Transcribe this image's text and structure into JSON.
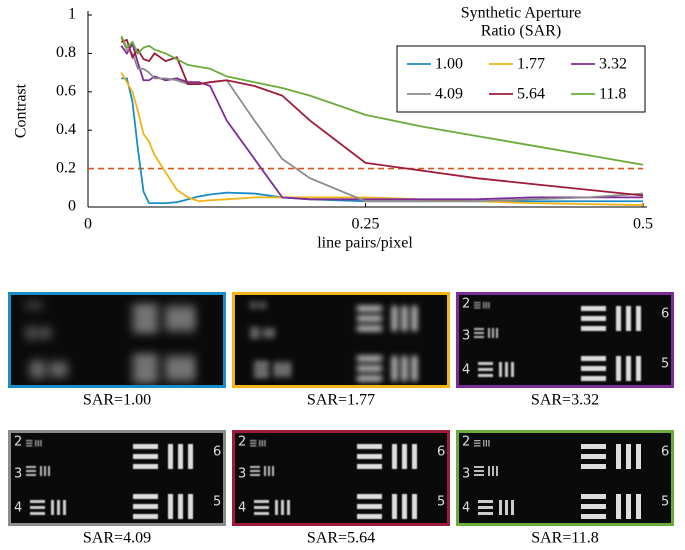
{
  "chart_data": {
    "type": "line",
    "xlabel": "line pairs/pixel",
    "ylabel": "Contrast",
    "xlim": [
      0,
      0.5
    ],
    "ylim": [
      0,
      1
    ],
    "xticks": [
      0,
      0.25,
      0.5
    ],
    "yticks": [
      0,
      0.2,
      0.4,
      0.6,
      0.8,
      1
    ],
    "legend_title": [
      "Synthetic Aperture",
      "Ratio (SAR)"
    ],
    "legend_position": "upper right",
    "reference_line": {
      "value": 0.2,
      "color": "#d9541e"
    },
    "x": [
      0.03,
      0.035,
      0.04,
      0.045,
      0.05,
      0.055,
      0.06,
      0.07,
      0.08,
      0.09,
      0.1,
      0.11,
      0.125,
      0.15,
      0.175,
      0.2,
      0.25,
      0.3,
      0.35,
      0.4,
      0.45,
      0.5
    ],
    "series": [
      {
        "name": "1.00",
        "color": "#1a8cc6",
        "values": [
          0.67,
          0.67,
          0.55,
          0.3,
          0.08,
          0.02,
          0.02,
          0.02,
          0.025,
          0.04,
          0.055,
          0.065,
          0.075,
          0.07,
          0.05,
          0.04,
          0.03,
          0.03,
          0.03,
          0.03,
          0.03,
          0.03
        ]
      },
      {
        "name": "1.77",
        "color": "#f2b316",
        "values": [
          0.7,
          0.65,
          0.6,
          0.5,
          0.38,
          0.34,
          0.27,
          0.18,
          0.09,
          0.05,
          0.03,
          0.035,
          0.04,
          0.05,
          0.05,
          0.05,
          0.05,
          0.04,
          0.03,
          0.02,
          0.015,
          0.01
        ]
      },
      {
        "name": "3.32",
        "color": "#7d2a9a",
        "values": [
          0.84,
          0.8,
          0.85,
          0.75,
          0.66,
          0.66,
          0.68,
          0.66,
          0.67,
          0.65,
          0.65,
          0.63,
          0.45,
          0.25,
          0.05,
          0.04,
          0.04,
          0.04,
          0.04,
          0.05,
          0.05,
          0.05
        ]
      },
      {
        "name": "4.09",
        "color": "#8c8c8c",
        "values": [
          0.88,
          0.82,
          0.8,
          0.72,
          0.72,
          0.7,
          0.67,
          0.67,
          0.66,
          0.64,
          0.64,
          0.65,
          0.66,
          0.45,
          0.25,
          0.15,
          0.03,
          0.03,
          0.03,
          0.04,
          0.05,
          0.07
        ]
      },
      {
        "name": "5.64",
        "color": "#9e1b3c",
        "values": [
          0.86,
          0.87,
          0.78,
          0.82,
          0.77,
          0.76,
          0.8,
          0.76,
          0.78,
          0.64,
          0.64,
          0.65,
          0.66,
          0.63,
          0.58,
          0.45,
          0.23,
          0.19,
          0.15,
          0.12,
          0.09,
          0.06
        ]
      },
      {
        "name": "11.8",
        "color": "#6aab3a",
        "values": [
          0.89,
          0.83,
          0.86,
          0.8,
          0.83,
          0.84,
          0.82,
          0.8,
          0.77,
          0.74,
          0.73,
          0.72,
          0.68,
          0.65,
          0.62,
          0.58,
          0.48,
          0.42,
          0.37,
          0.32,
          0.27,
          0.22
        ]
      }
    ]
  },
  "panels": [
    {
      "caption": "SAR=1.00",
      "color": "#1a8cc6"
    },
    {
      "caption": "SAR=1.77",
      "color": "#f2b316"
    },
    {
      "caption": "SAR=3.32",
      "color": "#7d2a9a"
    },
    {
      "caption": "SAR=4.09",
      "color": "#8c8c8c"
    },
    {
      "caption": "SAR=5.64",
      "color": "#9e1b3c"
    },
    {
      "caption": "SAR=11.8",
      "color": "#6aab3a"
    }
  ],
  "target_labels": [
    "2",
    "3",
    "4",
    "6",
    "5"
  ]
}
